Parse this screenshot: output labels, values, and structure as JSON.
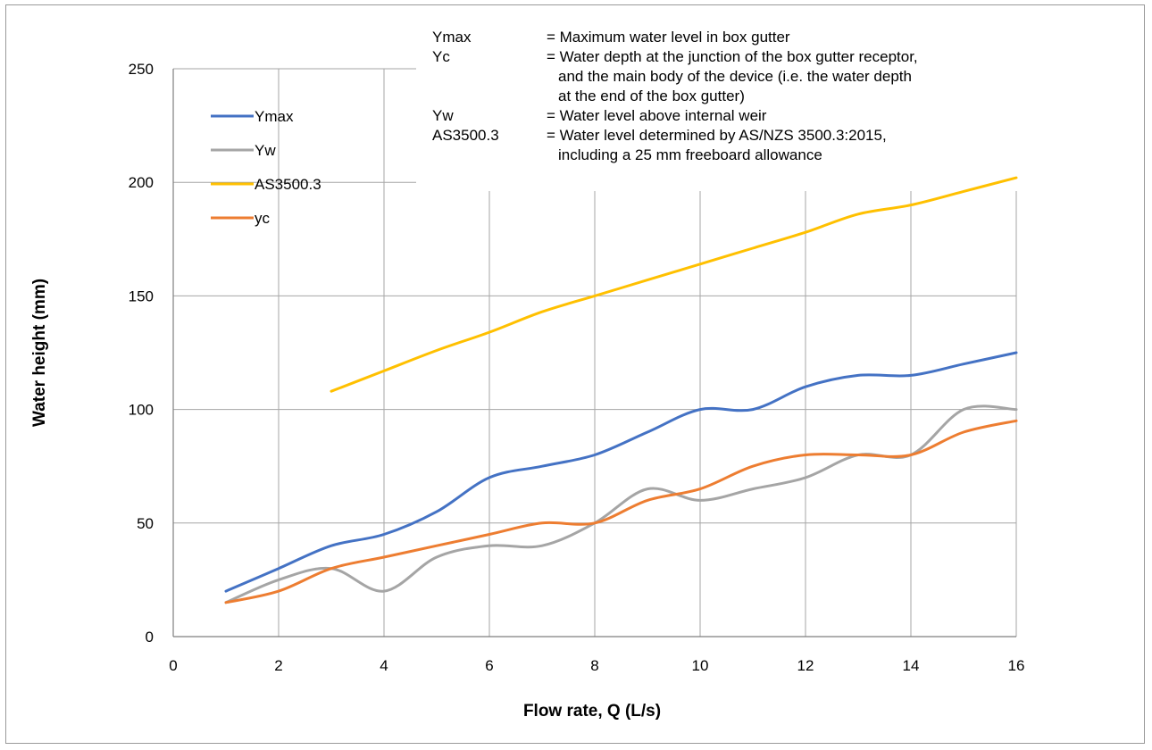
{
  "chart_data": {
    "type": "line",
    "xlabel": "Flow rate, Q (L/s)",
    "ylabel": "Water height (mm)",
    "xlim": [
      0,
      16
    ],
    "ylim": [
      0,
      250
    ],
    "x_ticks": [
      0,
      2,
      4,
      6,
      8,
      10,
      12,
      14,
      16
    ],
    "y_ticks": [
      0,
      50,
      100,
      150,
      200,
      250
    ],
    "grid": true,
    "legend_position": "top-left",
    "series": [
      {
        "name": "Ymax",
        "color": "#4472c4",
        "x": [
          1,
          2,
          3,
          4,
          5,
          6,
          7,
          8,
          9,
          10,
          11,
          12,
          13,
          14,
          15,
          16
        ],
        "y": [
          20,
          30,
          40,
          45,
          55,
          70,
          75,
          80,
          90,
          100,
          100,
          110,
          115,
          115,
          120,
          125
        ]
      },
      {
        "name": "Yw",
        "color": "#a5a5a5",
        "x": [
          1,
          2,
          3,
          4,
          5,
          6,
          7,
          8,
          9,
          10,
          11,
          12,
          13,
          14,
          15,
          16
        ],
        "y": [
          15,
          25,
          30,
          20,
          35,
          40,
          40,
          50,
          65,
          60,
          65,
          70,
          80,
          80,
          100,
          100
        ]
      },
      {
        "name": "AS3500.3",
        "color": "#ffc000",
        "x": [
          3,
          4,
          5,
          6,
          7,
          8,
          9,
          10,
          11,
          12,
          13,
          14,
          15,
          16
        ],
        "y": [
          108,
          117,
          126,
          134,
          143,
          150,
          157,
          164,
          171,
          178,
          186,
          190,
          196,
          202
        ]
      },
      {
        "name": "yc",
        "color": "#ed7d31",
        "x": [
          1,
          2,
          3,
          4,
          5,
          6,
          7,
          8,
          9,
          10,
          11,
          12,
          13,
          14,
          15,
          16
        ],
        "y": [
          15,
          20,
          30,
          35,
          40,
          45,
          50,
          50,
          60,
          65,
          75,
          80,
          80,
          80,
          90,
          95
        ]
      }
    ],
    "annotation": [
      {
        "term": "Ymax",
        "lines": [
          "= Maximum water level in box gutter"
        ]
      },
      {
        "term": "Yc",
        "lines": [
          "= Water depth at the junction of the box gutter receptor,",
          "and the main body of the device (i.e. the water depth",
          "at the end of the box gutter)"
        ]
      },
      {
        "term": "Yw",
        "lines": [
          "= Water level above internal weir"
        ]
      },
      {
        "term": "AS3500.3",
        "lines": [
          "= Water level determined by AS/NZS 3500.3:2015,",
          "including a 25 mm freeboard allowance"
        ]
      }
    ]
  }
}
